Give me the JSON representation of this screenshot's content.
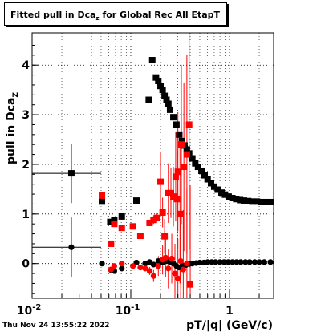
{
  "title": {
    "prefix": "Fitted pull in Dca",
    "sub": "z",
    "suffix": " for Global Rec All EtapT"
  },
  "timestamp": "Thu Nov 24 13:55:22 2022",
  "chart_data": {
    "type": "scatter",
    "title": "Fitted pull in Dcaz for Global Rec All EtapT",
    "xlabel": "pT/|q| (GeV/c)",
    "ylabel": "pull in Dca",
    "ylabel_sub": "Z",
    "xscale": "log",
    "xlim": [
      0.01,
      2.8
    ],
    "ylim": [
      -0.7,
      4.65
    ],
    "grid": true,
    "x_ticks": [
      {
        "value": 0.01,
        "label": "10",
        "sup": "-2"
      },
      {
        "value": 0.1,
        "label": "10",
        "sup": "-1"
      },
      {
        "value": 1,
        "label": "1",
        "sup": ""
      }
    ],
    "y_ticks": [
      0,
      1,
      2,
      3,
      4
    ],
    "series": [
      {
        "color": "#000000",
        "marker": "square",
        "points": [
          {
            "x": 0.025,
            "y": 1.82,
            "xerr": [
              0.015,
              0.025
            ],
            "yerr": 0.6
          },
          {
            "x": 0.051,
            "y": 1.25,
            "yerr": 0.03
          },
          {
            "x": 0.062,
            "y": 0.84,
            "yerr": 0.05
          },
          {
            "x": 0.068,
            "y": 0.88,
            "yerr": 0.05
          },
          {
            "x": 0.081,
            "y": 0.95,
            "yerr": 0.05
          },
          {
            "x": 0.114,
            "y": 1.27,
            "yerr": 0.05
          },
          {
            "x": 0.152,
            "y": 3.3,
            "yerr": 0.05
          },
          {
            "x": 0.165,
            "y": 4.1,
            "yerr": 0.05
          },
          {
            "x": 0.18,
            "y": 3.75
          },
          {
            "x": 0.19,
            "y": 3.68
          },
          {
            "x": 0.2,
            "y": 3.58
          },
          {
            "x": 0.21,
            "y": 3.5
          },
          {
            "x": 0.22,
            "y": 3.38
          },
          {
            "x": 0.23,
            "y": 3.3
          },
          {
            "x": 0.24,
            "y": 3.22
          },
          {
            "x": 0.25,
            "y": 3.1
          },
          {
            "x": 0.27,
            "y": 2.95
          },
          {
            "x": 0.29,
            "y": 2.8
          },
          {
            "x": 0.31,
            "y": 2.6
          },
          {
            "x": 0.33,
            "y": 2.47
          },
          {
            "x": 0.35,
            "y": 2.38
          },
          {
            "x": 0.37,
            "y": 2.3
          },
          {
            "x": 0.39,
            "y": 2.22
          },
          {
            "x": 0.42,
            "y": 2.12
          },
          {
            "x": 0.45,
            "y": 2.02
          },
          {
            "x": 0.48,
            "y": 1.95
          },
          {
            "x": 0.52,
            "y": 1.87
          },
          {
            "x": 0.56,
            "y": 1.78
          },
          {
            "x": 0.6,
            "y": 1.7
          },
          {
            "x": 0.65,
            "y": 1.62
          },
          {
            "x": 0.7,
            "y": 1.55
          },
          {
            "x": 0.76,
            "y": 1.49
          },
          {
            "x": 0.83,
            "y": 1.43
          },
          {
            "x": 0.9,
            "y": 1.39
          },
          {
            "x": 0.98,
            "y": 1.35
          },
          {
            "x": 1.07,
            "y": 1.32
          },
          {
            "x": 1.17,
            "y": 1.3
          },
          {
            "x": 1.28,
            "y": 1.28
          },
          {
            "x": 1.4,
            "y": 1.27
          },
          {
            "x": 1.55,
            "y": 1.26
          },
          {
            "x": 1.7,
            "y": 1.25
          },
          {
            "x": 1.9,
            "y": 1.25
          },
          {
            "x": 2.1,
            "y": 1.24
          },
          {
            "x": 2.35,
            "y": 1.24
          },
          {
            "x": 2.6,
            "y": 1.24
          }
        ]
      },
      {
        "color": "#ff0000",
        "marker": "square",
        "points": [
          {
            "x": 0.051,
            "y": 1.37,
            "yerr": 0.06
          },
          {
            "x": 0.063,
            "y": 0.4,
            "yerr": 0.05
          },
          {
            "x": 0.068,
            "y": 0.8,
            "yerr": 0.05
          },
          {
            "x": 0.081,
            "y": 0.72,
            "yerr": 0.05
          },
          {
            "x": 0.105,
            "y": 0.75,
            "yerr": 0.05
          },
          {
            "x": 0.125,
            "y": 0.56,
            "yerr": 0.05
          },
          {
            "x": 0.155,
            "y": 0.82,
            "yerr": 0.06
          },
          {
            "x": 0.17,
            "y": 0.88,
            "yerr": 0.08
          },
          {
            "x": 0.183,
            "y": 0.92,
            "yerr": 0.1
          },
          {
            "x": 0.2,
            "y": 1.65,
            "yerr": 0.6
          },
          {
            "x": 0.21,
            "y": 1.03,
            "yerr": 0.3
          },
          {
            "x": 0.22,
            "y": 0.55,
            "yerr": 0.35
          },
          {
            "x": 0.24,
            "y": 1.42,
            "yerr": 0.6
          },
          {
            "x": 0.255,
            "y": 1.42,
            "yerr": 0.5
          },
          {
            "x": 0.27,
            "y": 1.35,
            "yerr": 0.6
          },
          {
            "x": 0.285,
            "y": 1.75,
            "yerr": 0.9
          },
          {
            "x": 0.3,
            "y": 1.85,
            "yerr": 1.2
          },
          {
            "x": 0.315,
            "y": 1.0,
            "yerr": 1.4
          },
          {
            "x": 0.325,
            "y": 2.4,
            "yerr": 1.6
          },
          {
            "x": 0.345,
            "y": 1.95,
            "yerr": 1.7
          },
          {
            "x": 0.37,
            "y": 2.2,
            "yerr": 2.0
          },
          {
            "x": 0.39,
            "y": 2.8,
            "yerr": 2.5
          },
          {
            "x": 0.4,
            "y": -0.42,
            "yerr": 2.0
          },
          {
            "x": 0.295,
            "y": 1.3,
            "yerr": 1.0
          }
        ]
      },
      {
        "color": "#000000",
        "marker": "circle",
        "points": [
          {
            "x": 0.025,
            "y": 0.33,
            "xerr": [
              0.015,
              0.025
            ],
            "yerr": 0.6
          },
          {
            "x": 0.051,
            "y": 0.0,
            "yerr": 0.02
          },
          {
            "x": 0.063,
            "y": -0.13,
            "yerr": 0.03
          },
          {
            "x": 0.068,
            "y": -0.15,
            "yerr": 0.03
          },
          {
            "x": 0.081,
            "y": -0.1,
            "yerr": 0.03
          },
          {
            "x": 0.114,
            "y": 0.02,
            "yerr": 0.03
          },
          {
            "x": 0.14,
            "y": 0.0
          },
          {
            "x": 0.155,
            "y": 0.03
          },
          {
            "x": 0.17,
            "y": -0.02
          },
          {
            "x": 0.19,
            "y": 0.05
          },
          {
            "x": 0.21,
            "y": 0.02
          },
          {
            "x": 0.23,
            "y": 0.05
          },
          {
            "x": 0.25,
            "y": 0.03
          },
          {
            "x": 0.27,
            "y": 0.0
          },
          {
            "x": 0.29,
            "y": -0.05
          },
          {
            "x": 0.31,
            "y": -0.08
          },
          {
            "x": 0.33,
            "y": -0.05
          },
          {
            "x": 0.36,
            "y": -0.03
          },
          {
            "x": 0.39,
            "y": -0.01
          },
          {
            "x": 0.42,
            "y": 0.0
          },
          {
            "x": 0.46,
            "y": 0.01
          },
          {
            "x": 0.5,
            "y": 0.02
          },
          {
            "x": 0.55,
            "y": 0.02
          },
          {
            "x": 0.6,
            "y": 0.03
          },
          {
            "x": 0.66,
            "y": 0.03
          },
          {
            "x": 0.72,
            "y": 0.03
          },
          {
            "x": 0.8,
            "y": 0.03
          },
          {
            "x": 0.88,
            "y": 0.03
          },
          {
            "x": 0.97,
            "y": 0.03
          },
          {
            "x": 1.07,
            "y": 0.03
          },
          {
            "x": 1.18,
            "y": 0.03
          },
          {
            "x": 1.3,
            "y": 0.03
          },
          {
            "x": 1.45,
            "y": 0.03
          },
          {
            "x": 1.6,
            "y": 0.03
          },
          {
            "x": 1.8,
            "y": 0.03
          },
          {
            "x": 2.0,
            "y": 0.03
          },
          {
            "x": 2.25,
            "y": 0.03
          },
          {
            "x": 2.6,
            "y": 0.03
          }
        ]
      },
      {
        "color": "#ff0000",
        "marker": "circle",
        "points": [
          {
            "x": 0.063,
            "y": -0.12,
            "yerr": 0.03
          },
          {
            "x": 0.068,
            "y": -0.05,
            "yerr": 0.03
          },
          {
            "x": 0.081,
            "y": 0.0,
            "yerr": 0.03
          },
          {
            "x": 0.105,
            "y": -0.05,
            "yerr": 0.03
          },
          {
            "x": 0.125,
            "y": -0.08,
            "yerr": 0.04
          },
          {
            "x": 0.14,
            "y": -0.1,
            "yerr": 0.05
          },
          {
            "x": 0.155,
            "y": -0.15,
            "yerr": 0.08
          },
          {
            "x": 0.17,
            "y": -0.25,
            "yerr": 0.12
          },
          {
            "x": 0.19,
            "y": -0.05,
            "yerr": 0.2
          },
          {
            "x": 0.21,
            "y": 0.08,
            "yerr": 0.3
          },
          {
            "x": 0.225,
            "y": 0.12,
            "yerr": 0.4
          },
          {
            "x": 0.24,
            "y": -0.1,
            "yerr": 0.4
          },
          {
            "x": 0.26,
            "y": 0.1,
            "yerr": 0.5
          },
          {
            "x": 0.28,
            "y": -0.2,
            "yerr": 0.6
          },
          {
            "x": 0.3,
            "y": -0.3,
            "yerr": 0.8
          },
          {
            "x": 0.32,
            "y": 0.05,
            "yerr": 1.0
          },
          {
            "x": 0.34,
            "y": -0.12,
            "yerr": 1.2
          },
          {
            "x": 0.37,
            "y": 0.0,
            "yerr": 1.5
          }
        ]
      }
    ]
  }
}
